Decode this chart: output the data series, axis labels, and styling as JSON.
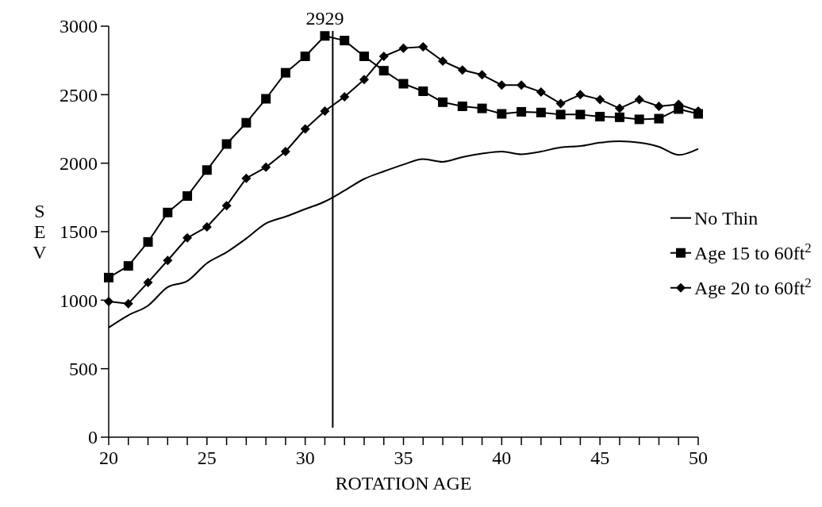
{
  "chart_data": {
    "type": "line",
    "xlabel": "ROTATION AGE",
    "ylabel": "SEV",
    "x": [
      20,
      21,
      22,
      23,
      24,
      25,
      26,
      27,
      28,
      29,
      30,
      31,
      32,
      33,
      34,
      35,
      36,
      37,
      38,
      39,
      40,
      41,
      42,
      43,
      44,
      45,
      46,
      47,
      48,
      49,
      50
    ],
    "series": [
      {
        "name": "No Thin",
        "color": "#000000",
        "marker": "none",
        "values": [
          800,
          890,
          960,
          1095,
          1140,
          1270,
          1350,
          1450,
          1560,
          1610,
          1665,
          1720,
          1800,
          1885,
          1940,
          1990,
          2030,
          2010,
          2045,
          2070,
          2085,
          2065,
          2085,
          2115,
          2125,
          2150,
          2160,
          2150,
          2120,
          2060,
          2105
        ]
      },
      {
        "name": "Age 15 to 60ft$^{2}$",
        "color": "#000000",
        "marker": "square",
        "values": [
          1165,
          1250,
          1425,
          1640,
          1760,
          1950,
          2140,
          2295,
          2470,
          2660,
          2780,
          2929,
          2895,
          2780,
          2675,
          2580,
          2525,
          2445,
          2415,
          2400,
          2360,
          2375,
          2370,
          2355,
          2355,
          2340,
          2335,
          2320,
          2325,
          2395,
          2360
        ]
      },
      {
        "name": "Age 20 to 60ft$^{2}$",
        "color": "#000000",
        "marker": "diamond",
        "values": [
          990,
          975,
          1130,
          1290,
          1455,
          1535,
          1690,
          1890,
          1970,
          2085,
          2250,
          2380,
          2485,
          2610,
          2780,
          2840,
          2850,
          2745,
          2680,
          2645,
          2570,
          2570,
          2520,
          2435,
          2500,
          2465,
          2400,
          2465,
          2415,
          2430,
          2380
        ]
      }
    ],
    "xlim": [
      20,
      50
    ],
    "xticks": [
      20,
      {
        "value": 21,
        "label": null
      },
      {
        "value": 22,
        "label": null
      },
      {
        "value": 23,
        "label": null
      },
      {
        "value": 24,
        "label": null
      },
      25,
      {
        "value": 26,
        "label": null
      },
      {
        "value": 27,
        "label": null
      },
      {
        "value": 28,
        "label": null
      },
      {
        "value": 29,
        "label": null
      },
      30,
      {
        "value": 31,
        "label": null
      },
      {
        "value": 32,
        "label": null
      },
      {
        "value": 33,
        "label": null
      },
      {
        "value": 34,
        "label": null
      },
      35,
      {
        "value": 36,
        "label": null
      },
      {
        "value": 37,
        "label": null
      },
      {
        "value": 38,
        "label": null
      },
      {
        "value": 39,
        "label": null
      },
      40,
      {
        "value": 41,
        "label": null
      },
      {
        "value": 42,
        "label": null
      },
      {
        "value": 43,
        "label": null
      },
      {
        "value": 44,
        "label": null
      },
      45,
      {
        "value": 46,
        "label": null
      },
      {
        "value": 47,
        "label": null
      },
      {
        "value": 48,
        "label": null
      },
      {
        "value": 49,
        "label": null
      },
      50
    ],
    "ylim": [
      0,
      3000
    ],
    "yticks": [
      0,
      500,
      1000,
      1500,
      2000,
      2500,
      3000
    ],
    "ref_lines": [
      {
        "axis": "x",
        "value": 31.4,
        "label": null,
        "color": "#000000"
      }
    ],
    "annotations": [
      {
        "text": "2929",
        "x": 31,
        "y": 2929
      }
    ],
    "legend": "right",
    "grid": false
  }
}
